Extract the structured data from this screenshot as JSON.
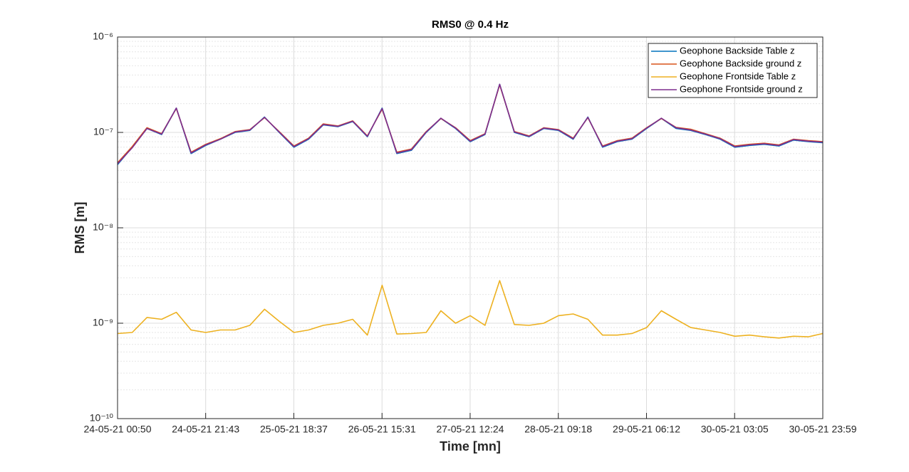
{
  "chart_data": {
    "type": "line",
    "title": "RMS0 @ 0.4 Hz",
    "x_label": "Time [mn]",
    "y_label": "RMS [m]",
    "x": [
      "24-05-21 00:50",
      "24-05-21 04:19",
      "24-05-21 07:48",
      "24-05-21 11:17",
      "24-05-21 14:46",
      "24-05-21 18:15",
      "24-05-21 21:44",
      "25-05-21 01:13",
      "25-05-21 04:42",
      "25-05-21 08:11",
      "25-05-21 11:40",
      "25-05-21 15:09",
      "25-05-21 18:38",
      "25-05-21 22:07",
      "26-05-21 01:36",
      "26-05-21 05:05",
      "26-05-21 08:34",
      "26-05-21 12:03",
      "26-05-21 15:32",
      "26-05-21 19:01",
      "26-05-21 22:30",
      "27-05-21 01:59",
      "27-05-21 05:28",
      "27-05-21 08:57",
      "27-05-21 12:26",
      "27-05-21 15:55",
      "27-05-21 19:24",
      "27-05-21 22:53",
      "28-05-21 02:22",
      "28-05-21 05:51",
      "28-05-21 09:20",
      "28-05-21 12:49",
      "28-05-21 16:18",
      "28-05-21 19:47",
      "28-05-21 23:16",
      "29-05-21 02:45",
      "29-05-21 06:14",
      "29-05-21 09:43",
      "29-05-21 13:12",
      "29-05-21 16:41",
      "29-05-21 20:10",
      "29-05-21 23:39",
      "30-05-21 03:08",
      "30-05-21 06:37",
      "30-05-21 10:06",
      "30-05-21 13:35",
      "30-05-21 17:04",
      "30-05-21 20:33",
      "30-05-21 23:59"
    ],
    "series": [
      {
        "name": "Geophone Backside Table z",
        "color": "#0072BD",
        "values": [
          4.6e-08,
          7e-08,
          1.1e-07,
          9.5e-08,
          1.8e-07,
          6e-08,
          7.3e-08,
          8.5e-08,
          1e-07,
          1.05e-07,
          1.45e-07,
          1e-07,
          7e-08,
          8.5e-08,
          1.2e-07,
          1.15e-07,
          1.3e-07,
          9e-08,
          1.8e-07,
          6e-08,
          6.5e-08,
          1e-07,
          1.4e-07,
          1.1e-07,
          8e-08,
          9.5e-08,
          3.2e-07,
          1e-07,
          9e-08,
          1.1e-07,
          1.05e-07,
          8.5e-08,
          1.45e-07,
          7e-08,
          8e-08,
          8.5e-08,
          1.1e-07,
          1.4e-07,
          1.1e-07,
          1.05e-07,
          9.5e-08,
          8.5e-08,
          7e-08,
          7.3e-08,
          7.5e-08,
          7.2e-08,
          8.3e-08,
          8e-08,
          7.8e-08
        ]
      },
      {
        "name": "Geophone Backside ground z",
        "color": "#D95319",
        "values": [
          4.8e-08,
          7.1e-08,
          1.12e-07,
          9.7e-08,
          1.78e-07,
          6.2e-08,
          7.5e-08,
          8.6e-08,
          1.02e-07,
          1.07e-07,
          1.43e-07,
          1.02e-07,
          7.2e-08,
          8.7e-08,
          1.23e-07,
          1.17e-07,
          1.32e-07,
          9.2e-08,
          1.75e-07,
          6.2e-08,
          6.7e-08,
          1.02e-07,
          1.4e-07,
          1.12e-07,
          8.2e-08,
          9.7e-08,
          3.15e-07,
          1.02e-07,
          9.2e-08,
          1.12e-07,
          1.07e-07,
          8.7e-08,
          1.43e-07,
          7.2e-08,
          8.2e-08,
          8.7e-08,
          1.12e-07,
          1.4e-07,
          1.13e-07,
          1.08e-07,
          9.7e-08,
          8.7e-08,
          7.2e-08,
          7.5e-08,
          7.7e-08,
          7.4e-08,
          8.5e-08,
          8.2e-08,
          8e-08
        ]
      },
      {
        "name": "Geophone Frontside Table z",
        "color": "#EDB120",
        "values": [
          7.8e-10,
          8e-10,
          1.15e-09,
          1.1e-09,
          1.3e-09,
          8.5e-10,
          8e-10,
          8.5e-10,
          8.5e-10,
          9.5e-10,
          1.4e-09,
          1.05e-09,
          8e-10,
          8.5e-10,
          9.5e-10,
          1e-09,
          1.1e-09,
          7.5e-10,
          2.5e-09,
          7.7e-10,
          7.8e-10,
          8e-10,
          1.35e-09,
          1e-09,
          1.2e-09,
          9.5e-10,
          2.8e-09,
          9.7e-10,
          9.5e-10,
          1e-09,
          1.2e-09,
          1.25e-09,
          1.1e-09,
          7.5e-10,
          7.5e-10,
          7.8e-10,
          9e-10,
          1.35e-09,
          1.1e-09,
          9e-10,
          8.5e-10,
          8e-10,
          7.3e-10,
          7.5e-10,
          7.2e-10,
          7e-10,
          7.3e-10,
          7.2e-10,
          7.8e-10
        ]
      },
      {
        "name": "Geophone Frontside ground z",
        "color": "#7E2F8E",
        "values": [
          4.7e-08,
          6.9e-08,
          1.1e-07,
          9.6e-08,
          1.8e-07,
          6.1e-08,
          7.4e-08,
          8.5e-08,
          1.01e-07,
          1.06e-07,
          1.44e-07,
          1.01e-07,
          7.1e-08,
          8.6e-08,
          1.21e-07,
          1.16e-07,
          1.31e-07,
          9.1e-08,
          1.78e-07,
          6.1e-08,
          6.6e-08,
          1.01e-07,
          1.41e-07,
          1.11e-07,
          8.1e-08,
          9.6e-08,
          3.2e-07,
          1.01e-07,
          9.1e-08,
          1.11e-07,
          1.06e-07,
          8.6e-08,
          1.44e-07,
          7.1e-08,
          8.1e-08,
          8.6e-08,
          1.11e-07,
          1.41e-07,
          1.12e-07,
          1.06e-07,
          9.6e-08,
          8.6e-08,
          7.1e-08,
          7.4e-08,
          7.6e-08,
          7.3e-08,
          8.4e-08,
          8.1e-08,
          7.9e-08
        ]
      }
    ],
    "xlim": [
      "24-05-21 00:50",
      "30-05-21 23:59"
    ],
    "xticks": [
      "24-05-21 00:50",
      "24-05-21 21:43",
      "25-05-21 18:37",
      "26-05-21 15:31",
      "27-05-21 12:24",
      "28-05-21 09:18",
      "29-05-21 06:12",
      "30-05-21 03:05",
      "30-05-21 23:59"
    ],
    "ylim": [
      1e-10,
      1e-06
    ],
    "yticks": [
      {
        "value": 1e-10,
        "label": "10⁻¹⁰"
      },
      {
        "value": 1e-09,
        "label": "10⁻⁹"
      },
      {
        "value": 1e-08,
        "label": "10⁻⁸"
      },
      {
        "value": 1e-07,
        "label": "10⁻⁷"
      },
      {
        "value": 1e-06,
        "label": "10⁻⁶"
      }
    ],
    "y_scale": "log",
    "grid": true,
    "minor_grid": true,
    "legend": "top-right"
  }
}
